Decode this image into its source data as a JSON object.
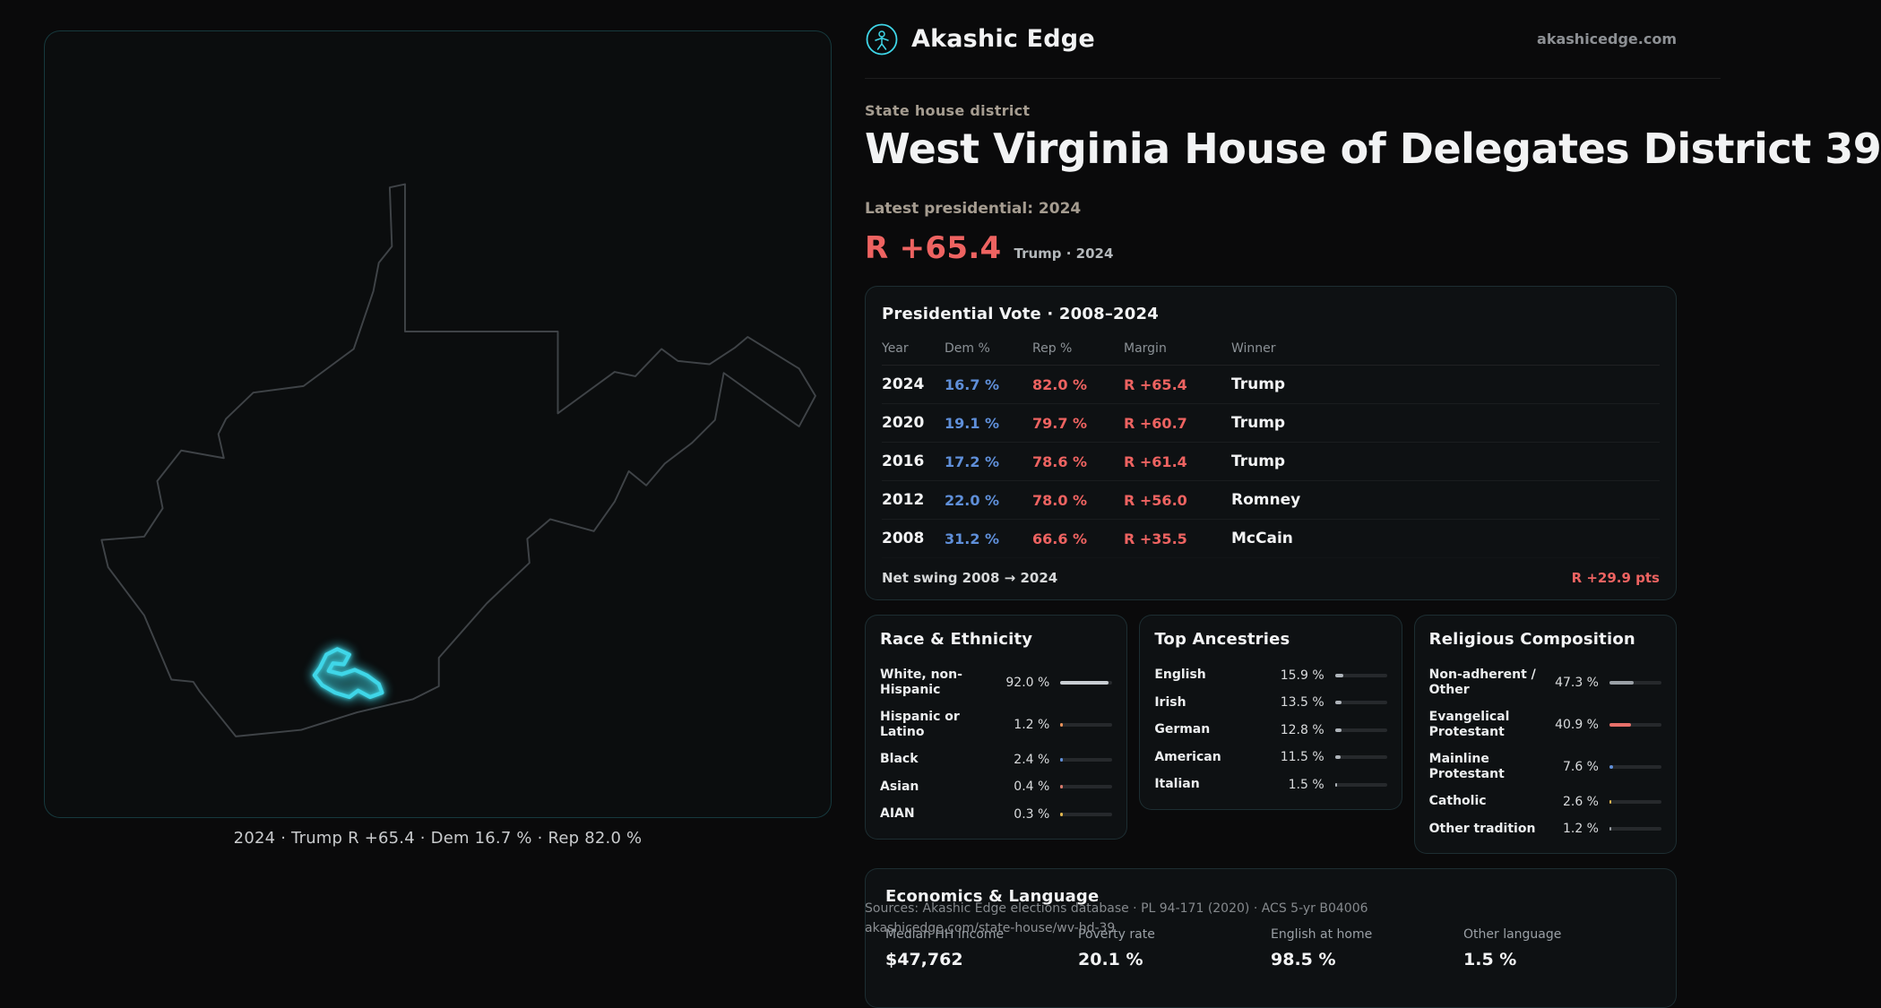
{
  "theme": {
    "accent-red": "#ee6361",
    "accent-blue": "#5f8fd9",
    "accent-teal": "#3fd6e8"
  },
  "brand": {
    "name": "Akashic Edge",
    "domain": "akashicedge.com"
  },
  "map": {
    "caption": "2024 · Trump R +65.4 · Dem 16.7 % · Rep 82.0 %"
  },
  "page": {
    "kicker": "State house district",
    "title": "West Virginia House of Delegates District 39",
    "latest_label": "Latest presidential: 2024",
    "headline_margin": "R +65.4",
    "headline_context": "Trump · 2024"
  },
  "pres": {
    "title": "Presidential Vote · 2008–2024",
    "columns": [
      "Year",
      "Dem %",
      "Rep %",
      "Margin",
      "Winner"
    ],
    "rows": [
      {
        "year": "2024",
        "dem": "16.7 %",
        "rep": "82.0 %",
        "margin": "R +65.4",
        "winner": "Trump"
      },
      {
        "year": "2020",
        "dem": "19.1 %",
        "rep": "79.7 %",
        "margin": "R +60.7",
        "winner": "Trump"
      },
      {
        "year": "2016",
        "dem": "17.2 %",
        "rep": "78.6 %",
        "margin": "R +61.4",
        "winner": "Trump"
      },
      {
        "year": "2012",
        "dem": "22.0 %",
        "rep": "78.0 %",
        "margin": "R +56.0",
        "winner": "Romney"
      },
      {
        "year": "2008",
        "dem": "31.2 %",
        "rep": "66.6 %",
        "margin": "R +35.5",
        "winner": "McCain"
      }
    ],
    "net_swing_label": "Net swing 2008 → 2024",
    "net_swing_value": "R +29.9 pts"
  },
  "race": {
    "title": "Race & Ethnicity",
    "rows": [
      {
        "label": "White, non-Hispanic",
        "value": "92.0 %",
        "pct": 92.0,
        "color": "#c9ced3"
      },
      {
        "label": "Hispanic or Latino",
        "value": "1.2 %",
        "pct": 1.2,
        "color": "#e8925a"
      },
      {
        "label": "Black",
        "value": "2.4 %",
        "pct": 2.4,
        "color": "#5f8fd9"
      },
      {
        "label": "Asian",
        "value": "0.4 %",
        "pct": 0.4,
        "color": "#d87a6b"
      },
      {
        "label": "AIAN",
        "value": "0.3 %",
        "pct": 0.3,
        "color": "#e0b64f"
      }
    ]
  },
  "ancestry": {
    "title": "Top Ancestries",
    "rows": [
      {
        "label": "English",
        "value": "15.9 %",
        "pct": 15.9,
        "color": "#aeb4ba"
      },
      {
        "label": "Irish",
        "value": "13.5 %",
        "pct": 13.5,
        "color": "#aeb4ba"
      },
      {
        "label": "German",
        "value": "12.8 %",
        "pct": 12.8,
        "color": "#aeb4ba"
      },
      {
        "label": "American",
        "value": "11.5 %",
        "pct": 11.5,
        "color": "#aeb4ba"
      },
      {
        "label": "Italian",
        "value": "1.5 %",
        "pct": 1.5,
        "color": "#aeb4ba"
      }
    ]
  },
  "religion": {
    "title": "Religious Composition",
    "rows": [
      {
        "label": "Non-adherent / Other",
        "value": "47.3 %",
        "pct": 47.3,
        "color": "#9aa0a6"
      },
      {
        "label": "Evangelical Protestant",
        "value": "40.9 %",
        "pct": 40.9,
        "color": "#e8706a"
      },
      {
        "label": "Mainline Protestant",
        "value": "7.6 %",
        "pct": 7.6,
        "color": "#5f8fd9"
      },
      {
        "label": "Catholic",
        "value": "2.6 %",
        "pct": 2.6,
        "color": "#e0b64f"
      },
      {
        "label": "Other tradition",
        "value": "1.2 %",
        "pct": 1.2,
        "color": "#9aa0a6"
      }
    ]
  },
  "economics": {
    "title": "Economics & Language",
    "stats": [
      {
        "label": "Median HH income",
        "value": "$47,762"
      },
      {
        "label": "Poverty rate",
        "value": "20.1 %"
      },
      {
        "label": "English at home",
        "value": "98.5 %"
      },
      {
        "label": "Other language",
        "value": "1.5 %"
      }
    ]
  },
  "footer": {
    "sources": "Sources: Akashic Edge elections database · PL 94-171 (2020) · ACS 5-yr B04006",
    "permalink": "akashicedge.com/state-house/wv-hd-39"
  }
}
